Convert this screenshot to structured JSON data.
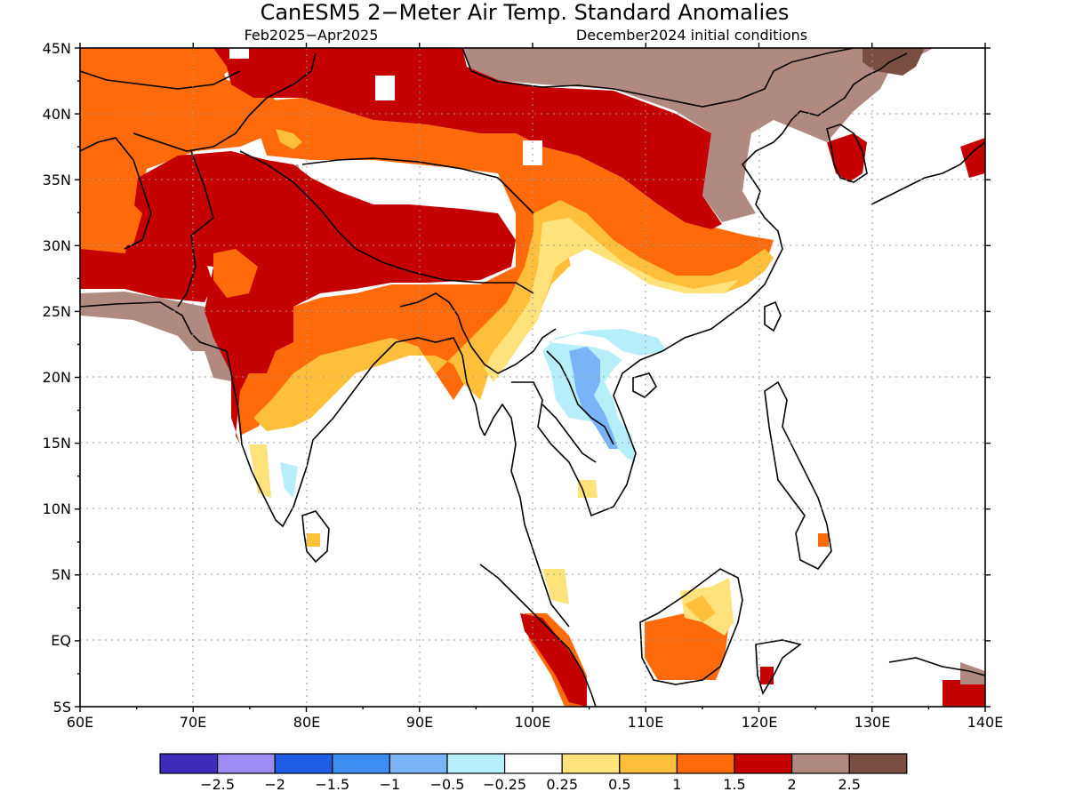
{
  "title": "CanESM5 2−Meter Air Temp. Standard Anomalies",
  "period": "Feb2025−Apr2025",
  "init": "December2024 initial conditions",
  "lat_labels": [
    "45N",
    "40N",
    "35N",
    "30N",
    "25N",
    "20N",
    "15N",
    "10N",
    "5N",
    "EQ",
    "5S"
  ],
  "lon_labels": [
    "60E",
    "70E",
    "80E",
    "90E",
    "100E",
    "110E",
    "120E",
    "130E",
    "140E"
  ],
  "legend": {
    "colors": [
      "#3d2bbb",
      "#9e8cf4",
      "#1f5ee4",
      "#3c8ff0",
      "#78b4f6",
      "#b6eefa",
      "#ffffff",
      "#ffe27a",
      "#ffbf3a",
      "#ff6a0b",
      "#c40000",
      "#b08a80",
      "#7a4e42"
    ],
    "labels": [
      "−2.5",
      "−2",
      "−1.5",
      "−1",
      "−0.5",
      "−0.25",
      "0.25",
      "0.5",
      "1",
      "1.5",
      "2",
      "2.5"
    ]
  }
}
